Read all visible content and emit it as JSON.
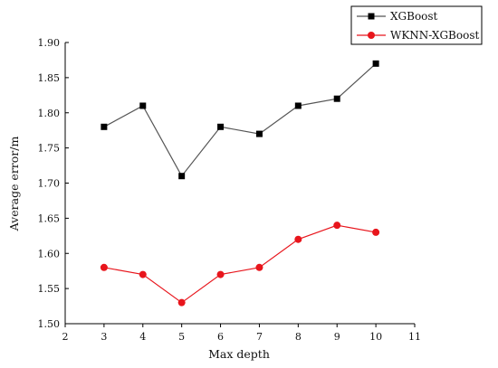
{
  "chart_data": {
    "type": "line",
    "title": "",
    "xlabel": "Max depth",
    "ylabel": "Average error/m",
    "xlim": [
      2,
      11
    ],
    "ylim": [
      1.5,
      1.9
    ],
    "xticks": [
      2,
      3,
      4,
      5,
      6,
      7,
      8,
      9,
      10,
      11
    ],
    "yticks": [
      1.5,
      1.55,
      1.6,
      1.65,
      1.7,
      1.75,
      1.8,
      1.85,
      1.9
    ],
    "grid": false,
    "legend_position": "top-right",
    "x": [
      3,
      4,
      5,
      6,
      7,
      8,
      9,
      10
    ],
    "series": [
      {
        "name": "XGBoost",
        "color": "#000000",
        "line_color": "#555555",
        "marker": "square",
        "values": [
          1.78,
          1.81,
          1.71,
          1.78,
          1.77,
          1.81,
          1.82,
          1.87
        ]
      },
      {
        "name": "WKNN-XGBoost",
        "color": "#e8151c",
        "line_color": "#e8151c",
        "marker": "circle",
        "values": [
          1.58,
          1.57,
          1.53,
          1.57,
          1.58,
          1.62,
          1.64,
          1.63
        ]
      }
    ]
  }
}
